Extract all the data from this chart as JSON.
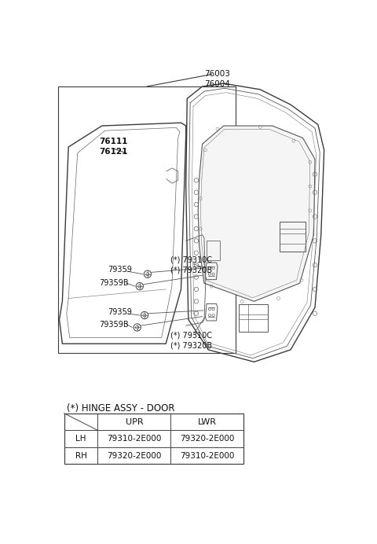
{
  "bg_color": "#ffffff",
  "line_color": "#3a3a3a",
  "table_title": "(*) HINGE ASSY - DOOR",
  "table_headers": [
    "",
    "UPR",
    "LWR"
  ],
  "table_rows": [
    [
      "LH",
      "79310-2E000",
      "79320-2E000"
    ],
    [
      "RH",
      "79320-2E000",
      "79310-2E000"
    ]
  ],
  "label_76003": "76003\n76004",
  "label_76111": "76111\n76121",
  "label_upper_hinge": "(*) 79310C\n(*) 79320B",
  "label_lower_hinge": "(*) 79310C\n(*) 79320B",
  "label_79359_u": "79359",
  "label_79359B_u": "79359B",
  "label_79359_l": "79359",
  "label_79359B_l": "79359B"
}
